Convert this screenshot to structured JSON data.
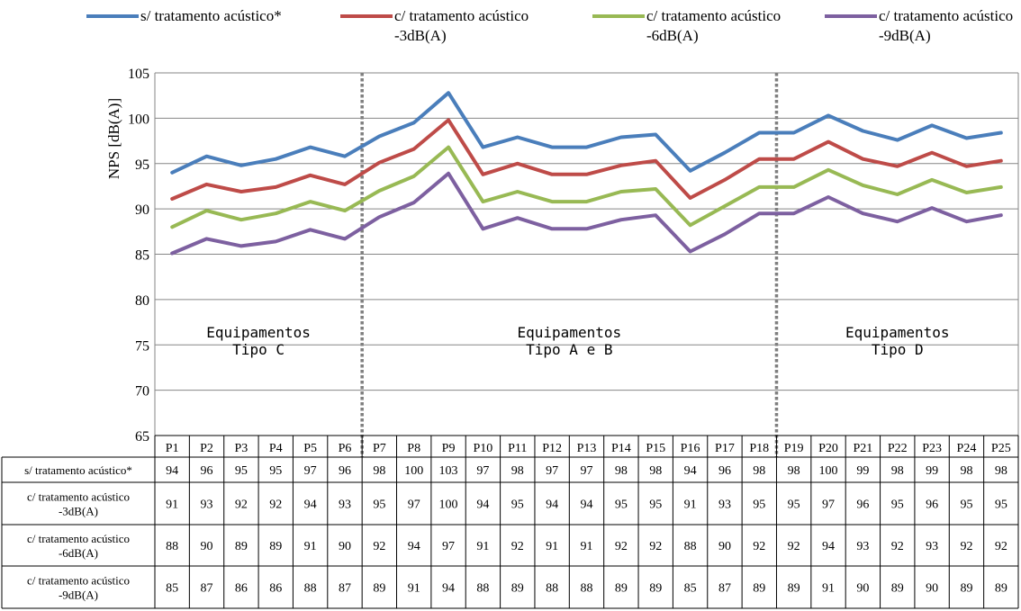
{
  "chart_data": {
    "type": "line",
    "ylabel": "NPS [dB(A)]",
    "ylim": [
      65,
      105
    ],
    "yticks": [
      65,
      70,
      75,
      80,
      85,
      90,
      95,
      100,
      105
    ],
    "grid": true,
    "legend_position": "top",
    "categories": [
      "P1",
      "P2",
      "P3",
      "P4",
      "P5",
      "P6",
      "P7",
      "P8",
      "P9",
      "P10",
      "P11",
      "P12",
      "P13",
      "P14",
      "P15",
      "P16",
      "P17",
      "P18",
      "P19",
      "P20",
      "P21",
      "P22",
      "P23",
      "P24",
      "P25"
    ],
    "series": [
      {
        "name": "s/ tratamento acústico*",
        "legend_lines": [
          "s/ tratamento acústico*"
        ],
        "table_lines": [
          "s/ tratamento acústico*"
        ],
        "color": "#4a7ebb",
        "values": [
          94,
          95.8,
          94.8,
          95.5,
          96.8,
          95.8,
          98,
          99.5,
          102.8,
          96.8,
          97.9,
          96.8,
          96.8,
          97.9,
          98.2,
          94.2,
          96.2,
          98.4,
          98.4,
          100.3,
          98.6,
          97.6,
          99.2,
          97.8,
          98.4
        ],
        "table_values": [
          "94",
          "96",
          "95",
          "95",
          "97",
          "96",
          "98",
          "100",
          "103",
          "97",
          "98",
          "97",
          "97",
          "98",
          "98",
          "94",
          "96",
          "98",
          "98",
          "100",
          "99",
          "98",
          "99",
          "98",
          "98"
        ]
      },
      {
        "name": "c/ tratamento acústico -3dB(A)",
        "legend_lines": [
          "c/ tratamento acústico",
          "-3dB(A)"
        ],
        "table_lines": [
          "c/ tratamento acústico",
          "-3dB(A)"
        ],
        "color": "#be4b48",
        "values": [
          91.1,
          92.7,
          91.9,
          92.4,
          93.7,
          92.7,
          95.1,
          96.6,
          99.8,
          93.8,
          95,
          93.8,
          93.8,
          94.8,
          95.3,
          91.2,
          93.2,
          95.5,
          95.5,
          97.4,
          95.5,
          94.7,
          96.2,
          94.7,
          95.3
        ],
        "table_values": [
          "91",
          "93",
          "92",
          "92",
          "94",
          "93",
          "95",
          "97",
          "100",
          "94",
          "95",
          "94",
          "94",
          "95",
          "95",
          "91",
          "93",
          "95",
          "95",
          "97",
          "96",
          "95",
          "96",
          "95",
          "95"
        ]
      },
      {
        "name": "c/ tratamento acústico -6dB(A)",
        "legend_lines": [
          "c/ tratamento acústico",
          "-6dB(A)"
        ],
        "table_lines": [
          "c/ tratamento acústico",
          "-6dB(A)"
        ],
        "color": "#98b954",
        "values": [
          88,
          89.8,
          88.8,
          89.5,
          90.8,
          89.8,
          92,
          93.6,
          96.8,
          90.8,
          91.9,
          90.8,
          90.8,
          91.9,
          92.2,
          88.2,
          90.3,
          92.4,
          92.4,
          94.3,
          92.6,
          91.6,
          93.2,
          91.8,
          92.4
        ],
        "table_values": [
          "88",
          "90",
          "89",
          "89",
          "91",
          "90",
          "92",
          "94",
          "97",
          "91",
          "92",
          "91",
          "91",
          "92",
          "92",
          "88",
          "90",
          "92",
          "92",
          "94",
          "93",
          "92",
          "93",
          "92",
          "92"
        ]
      },
      {
        "name": "c/ tratamento acústico -9dB(A)",
        "legend_lines": [
          "c/ tratamento acústico",
          "-9dB(A)"
        ],
        "table_lines": [
          "c/ tratamento acústico",
          "-9dB(A)"
        ],
        "color": "#7d60a0",
        "values": [
          85.1,
          86.7,
          85.9,
          86.4,
          87.7,
          86.7,
          89.1,
          90.7,
          93.9,
          87.8,
          89,
          87.8,
          87.8,
          88.8,
          89.3,
          85.3,
          87.2,
          89.5,
          89.5,
          91.3,
          89.5,
          88.6,
          90.1,
          88.6,
          89.3
        ],
        "table_values": [
          "85",
          "87",
          "86",
          "86",
          "88",
          "87",
          "89",
          "91",
          "94",
          "88",
          "89",
          "88",
          "88",
          "89",
          "89",
          "85",
          "87",
          "89",
          "89",
          "91",
          "90",
          "89",
          "90",
          "89",
          "89"
        ]
      }
    ],
    "dividers_after": [
      "P6",
      "P18"
    ],
    "annotations": [
      {
        "lines": [
          "Equipamentos",
          "Tipo C"
        ],
        "start": 0,
        "end": 5
      },
      {
        "lines": [
          "Equipamentos",
          "Tipo A e B"
        ],
        "start": 6,
        "end": 17
      },
      {
        "lines": [
          "Equipamentos",
          "Tipo D"
        ],
        "start": 18,
        "end": 24
      }
    ]
  }
}
